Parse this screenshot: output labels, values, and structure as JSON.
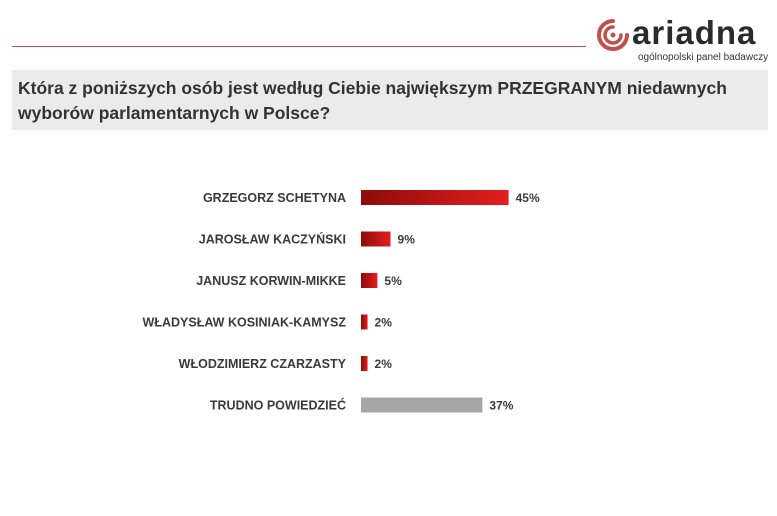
{
  "brand": {
    "name": "ariadna",
    "tagline": "ogólnopolski panel badawczy"
  },
  "question": "Która z poniższych osób jest według Ciebie największym PRZEGRANYM niedawnych wyborów parlamentarnych w Polsce?",
  "colors": {
    "accent": "#c0504d",
    "bar_red": "#e41e1e",
    "bar_red_dark": "#8e0b0b",
    "bar_gray": "#a6a6a6",
    "text": "#3a3a3a"
  },
  "chart_data": {
    "type": "bar",
    "orientation": "horizontal",
    "title": "",
    "xlabel": "",
    "ylabel": "",
    "xlim": [
      0,
      100
    ],
    "grid": false,
    "categories": [
      "GRZEGORZ SCHETYNA",
      "JAROSŁAW KACZYŃSKI",
      "JANUSZ KORWIN-MIKKE",
      "WŁADYSŁAW KOSINIAK-KAMYSZ",
      "WŁODZIMIERZ CZARZASTY",
      "TRUDNO POWIEDZIEĆ"
    ],
    "values": [
      45,
      9,
      5,
      2,
      2,
      37
    ],
    "labels": [
      "45%",
      "9%",
      "5%",
      "2%",
      "2%",
      "37%"
    ],
    "bar_colors": [
      "red",
      "red",
      "red",
      "red",
      "red",
      "gray"
    ]
  }
}
